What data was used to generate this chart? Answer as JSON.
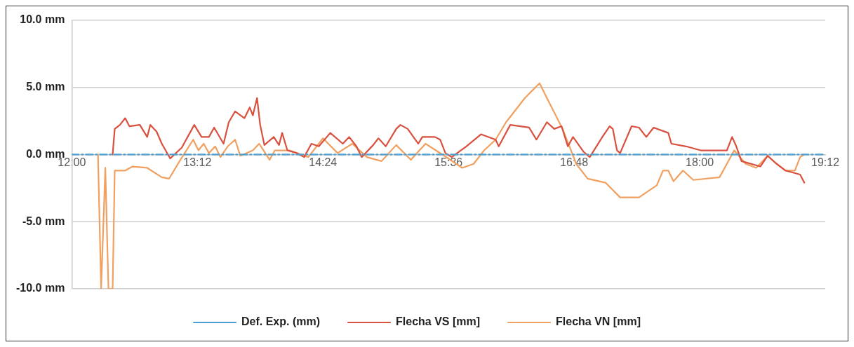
{
  "chart_data": {
    "type": "line",
    "xlim": [
      12,
      19.2
    ],
    "xticks": [
      {
        "value": 12,
        "label": "12:00"
      },
      {
        "value": 13.2,
        "label": "13:12"
      },
      {
        "value": 14.4,
        "label": "14:24"
      },
      {
        "value": 15.6,
        "label": "15:36"
      },
      {
        "value": 16.8,
        "label": "16:48"
      },
      {
        "value": 18,
        "label": "18:00"
      },
      {
        "value": 19.2,
        "label": "19:12"
      }
    ],
    "ylim": [
      -10,
      10
    ],
    "yticks": [
      {
        "value": -10,
        "label": "-10.0 mm"
      },
      {
        "value": -5,
        "label": "-5.0 mm"
      },
      {
        "value": 0,
        "label": "0.0 mm"
      },
      {
        "value": 5,
        "label": "5.0 mm"
      },
      {
        "value": 10,
        "label": "10.0 mm"
      }
    ],
    "grid": "y",
    "legend": "bottom",
    "marker": "none",
    "series": [
      {
        "name": "Def. Exp. (mm)",
        "color": "#4a9fd5",
        "line_style": "dashed",
        "x": [
          12,
          19.2
        ],
        "values": [
          0,
          0
        ]
      },
      {
        "name": "Flecha VS [mm]",
        "color": "#d9503f",
        "x": [
          12.39,
          12.41,
          12.46,
          12.51,
          12.55,
          12.65,
          12.72,
          12.75,
          12.81,
          12.86,
          12.94,
          13.05,
          13.17,
          13.24,
          13.31,
          13.36,
          13.45,
          13.5,
          13.56,
          13.65,
          13.7,
          13.73,
          13.77,
          13.8,
          13.84,
          13.93,
          13.98,
          14.01,
          14.06,
          14.15,
          14.22,
          14.29,
          14.36,
          14.47,
          14.59,
          14.65,
          14.72,
          14.77,
          14.88,
          14.93,
          15.0,
          15.1,
          15.14,
          15.21,
          15.31,
          15.35,
          15.47,
          15.52,
          15.57,
          15.63,
          15.77,
          15.91,
          16.05,
          16.08,
          16.19,
          16.37,
          16.44,
          16.54,
          16.61,
          16.68,
          16.74,
          16.79,
          16.89,
          16.95,
          17.07,
          17.14,
          17.17,
          17.21,
          17.24,
          17.35,
          17.42,
          17.49,
          17.56,
          17.7,
          17.73,
          17.87,
          18.01,
          18.26,
          18.31,
          18.35,
          18.4,
          18.58,
          18.65,
          18.72,
          18.82,
          18.96,
          19.0
        ],
        "values": [
          0,
          1.9,
          2.2,
          2.7,
          2.1,
          2.2,
          1.3,
          2.2,
          1.7,
          0.8,
          -0.3,
          0.5,
          2.2,
          1.3,
          1.3,
          2.0,
          0.8,
          2.4,
          3.2,
          2.7,
          3.5,
          2.9,
          4.2,
          2.2,
          0.7,
          1.3,
          0.7,
          1.6,
          0.3,
          0.1,
          -0.2,
          0.8,
          0.6,
          1.6,
          0.8,
          1.3,
          0.6,
          -0.2,
          0.7,
          1.2,
          0.6,
          1.9,
          2.2,
          1.9,
          0.8,
          1.3,
          1.3,
          1.1,
          0.1,
          -0.2,
          0.6,
          1.5,
          1.1,
          0.6,
          2.2,
          2.0,
          1.1,
          2.4,
          1.9,
          2.1,
          0.6,
          1.3,
          0.2,
          -0.2,
          1.3,
          2.1,
          1.9,
          0.3,
          0.1,
          2.1,
          2.0,
          1.3,
          2.0,
          1.6,
          0.8,
          0.6,
          0.3,
          0.3,
          1.3,
          0.6,
          -0.5,
          -0.9,
          -0.1,
          -0.6,
          -1.2,
          -1.5,
          -2.1
        ]
      },
      {
        "name": "Flecha VN [mm]",
        "color": "#f0a060",
        "x": [
          12.25,
          12.28,
          12.32,
          12.35,
          12.39,
          12.41,
          12.51,
          12.58,
          12.72,
          12.86,
          12.93,
          13.03,
          13.16,
          13.21,
          13.26,
          13.31,
          13.37,
          13.42,
          13.49,
          13.56,
          13.61,
          13.73,
          13.79,
          13.89,
          13.94,
          14.08,
          14.26,
          14.4,
          14.54,
          14.68,
          14.82,
          14.96,
          15.1,
          15.24,
          15.38,
          15.56,
          15.73,
          15.84,
          15.94,
          16.05,
          16.15,
          16.33,
          16.47,
          16.54,
          16.69,
          16.82,
          16.93,
          17.1,
          17.24,
          17.42,
          17.59,
          17.65,
          17.7,
          17.75,
          17.84,
          17.94,
          18.19,
          18.26,
          18.33,
          18.44,
          18.54,
          18.65,
          18.72,
          18.82,
          18.91,
          18.96,
          19.0
        ],
        "values": [
          0,
          -10,
          -1.0,
          -10,
          -10,
          -1.2,
          -1.2,
          -0.9,
          -1.0,
          -1.7,
          -1.8,
          -0.5,
          1.1,
          0.3,
          0.8,
          0.1,
          0.6,
          -0.2,
          0.6,
          1.1,
          -0.1,
          0.3,
          0.8,
          -0.4,
          0.3,
          0.3,
          -0.2,
          1.2,
          0.1,
          0.8,
          -0.2,
          -0.5,
          0.7,
          -0.4,
          0.8,
          -0.1,
          -1.0,
          -0.7,
          0.3,
          1.1,
          2.4,
          4.2,
          5.3,
          4.2,
          1.9,
          -0.7,
          -1.8,
          -2.1,
          -3.2,
          -3.2,
          -2.3,
          -1.2,
          -1.2,
          -2.0,
          -1.2,
          -1.9,
          -1.7,
          -0.7,
          0.3,
          -0.7,
          -1.0,
          -0.1,
          -0.6,
          -1.2,
          -1.2,
          -0.2,
          0
        ]
      }
    ]
  }
}
